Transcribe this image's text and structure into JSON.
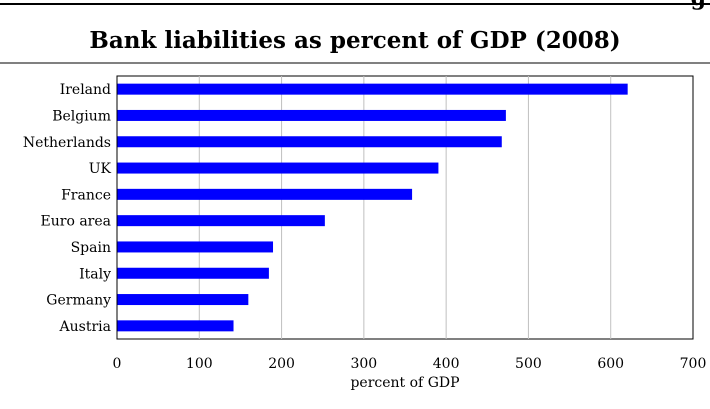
{
  "header": {
    "corner_fragment": "g"
  },
  "chart_data": {
    "type": "bar",
    "orientation": "horizontal",
    "title": "Bank liabilities as percent of GDP (2008)",
    "xlabel": "percent of GDP",
    "ylabel": "",
    "categories": [
      "Ireland",
      "Belgium",
      "Netherlands",
      "UK",
      "France",
      "Euro area",
      "Spain",
      "Italy",
      "Germany",
      "Austria"
    ],
    "values": [
      620,
      472,
      467,
      390,
      358,
      252,
      189,
      184,
      159,
      141
    ],
    "xlim": [
      0,
      700
    ],
    "xticks": [
      0,
      100,
      200,
      300,
      400,
      500,
      600,
      700
    ],
    "grid": "vertical",
    "bar_color": "#0000ff",
    "legend": "none"
  }
}
